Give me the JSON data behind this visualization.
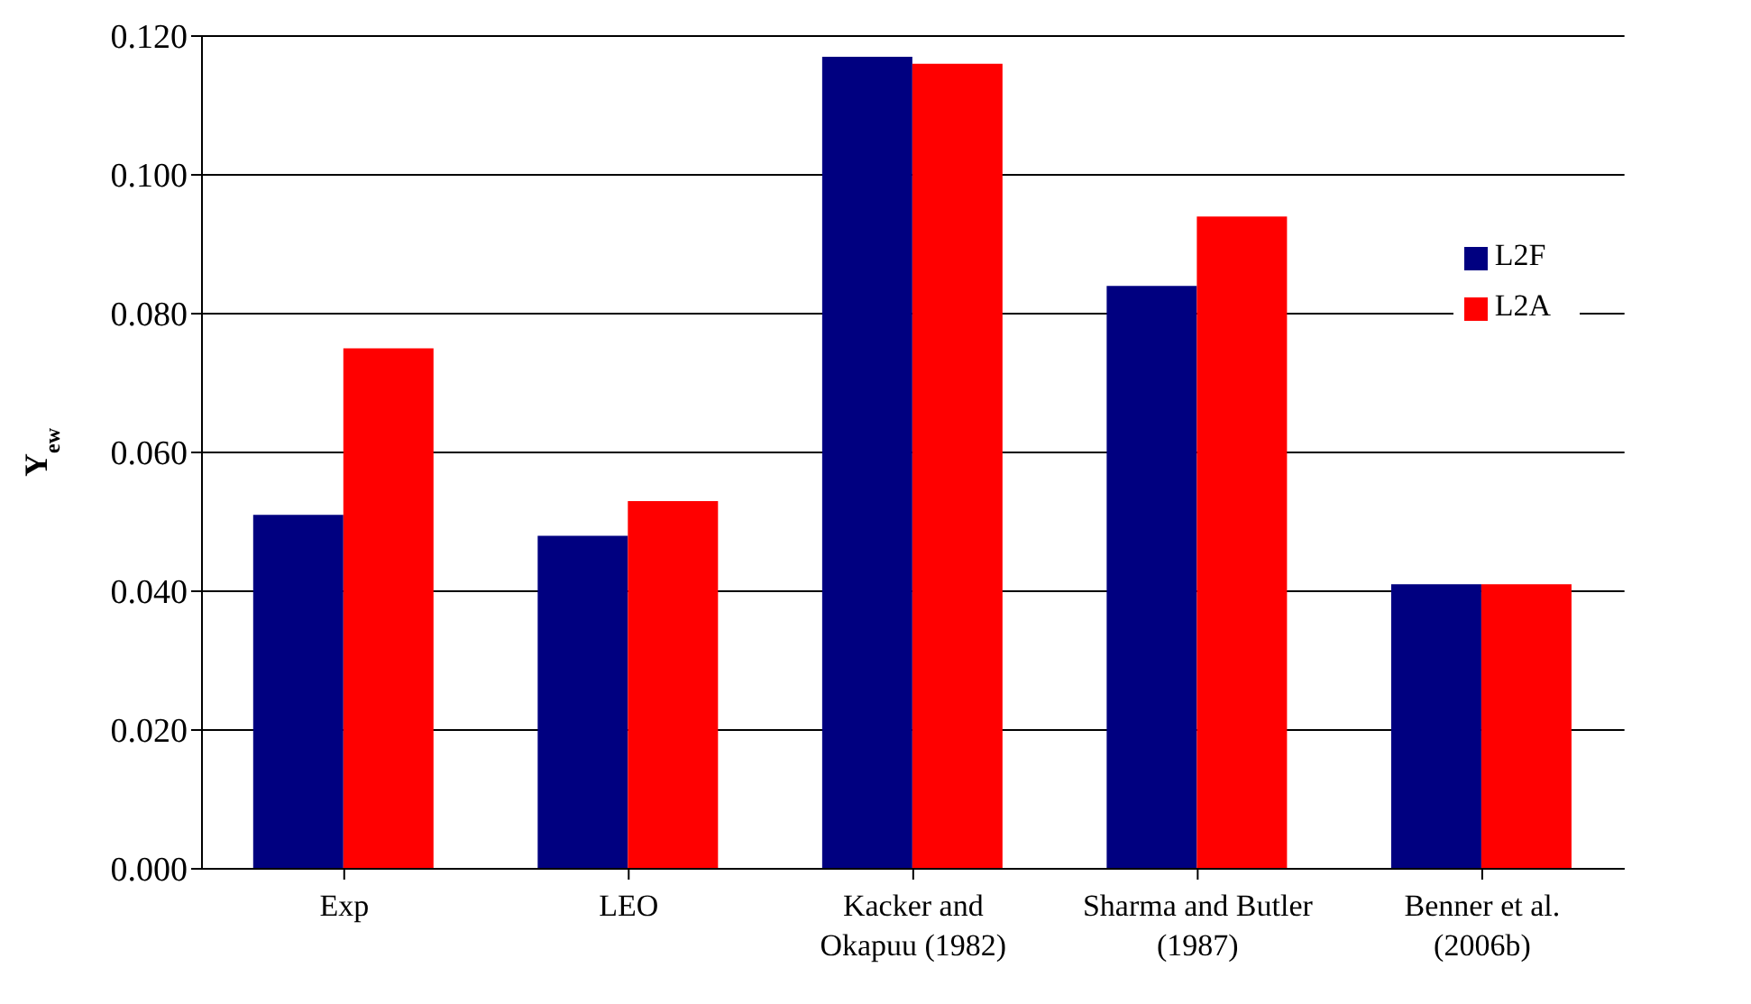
{
  "chart_data": {
    "type": "bar",
    "ylabel": "Y$_{ew}$",
    "categories": [
      "Exp",
      "LEO",
      "Kacker and Okapuu (1982)",
      "Sharma and Butler (1987)",
      "Benner et al. (2006b)"
    ],
    "series": [
      {
        "name": "L2F",
        "color": "#000080",
        "values": [
          0.051,
          0.048,
          0.117,
          0.084,
          0.041
        ]
      },
      {
        "name": "L2A",
        "color": "#ff0000",
        "values": [
          0.075,
          0.053,
          0.116,
          0.094,
          0.041
        ]
      }
    ],
    "ylim": [
      0,
      0.12
    ],
    "yticks": [
      {
        "value": 0,
        "label": "0.000"
      },
      {
        "value": 0.02,
        "label": "0.020"
      },
      {
        "value": 0.04,
        "label": "0.040"
      },
      {
        "value": 0.06,
        "label": "0.060"
      },
      {
        "value": 0.08,
        "label": "0.080"
      },
      {
        "value": 0.1,
        "label": "0.100"
      },
      {
        "value": 0.12,
        "label": "0.120"
      }
    ],
    "grid": "y",
    "legend": "top right"
  }
}
